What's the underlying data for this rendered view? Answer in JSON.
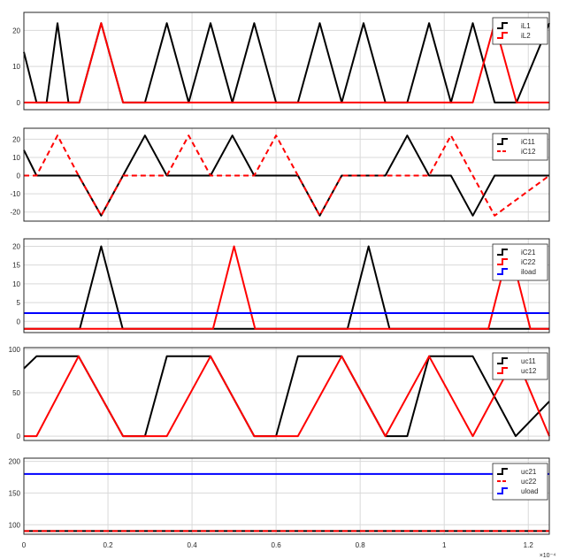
{
  "chart_data": [
    {
      "type": "line",
      "ylim": [
        -2,
        25
      ],
      "yticks": [
        0,
        10,
        20
      ],
      "xlim": [
        0,
        1.25
      ],
      "grid": true,
      "legend_position": "top-right",
      "series": [
        {
          "name": "iL1",
          "color": "#000000",
          "dash": "solid",
          "x": [
            0,
            0.03,
            0.054,
            0.08,
            0.106,
            0.132,
            0.184,
            0.236,
            0.288,
            0.34,
            0.392,
            0.444,
            0.496,
            0.548,
            0.6,
            0.652,
            0.704,
            0.756,
            0.808,
            0.86,
            0.912,
            0.964,
            1.016,
            1.068,
            1.12,
            1.172,
            1.25
          ],
          "y": [
            14,
            0,
            0,
            22,
            0,
            0,
            22,
            0,
            0,
            22,
            0,
            22,
            0,
            22,
            0,
            0,
            22,
            0,
            22,
            0,
            0,
            22,
            0,
            22,
            0,
            0,
            22
          ]
        },
        {
          "name": "iL2",
          "color": "#ff0000",
          "dash": "solid",
          "x": [
            0,
            0.132,
            0.184,
            0.236,
            0.288,
            0.34,
            0.392,
            0.444,
            0.496,
            0.548,
            0.6,
            0.652,
            0.704,
            0.756,
            0.808,
            0.86,
            0.912,
            0.964,
            1.016,
            1.068,
            1.12,
            1.172,
            1.25
          ],
          "y": [
            0,
            0,
            22,
            0,
            0,
            0,
            0,
            0,
            0,
            0,
            0,
            0,
            0,
            0,
            0,
            0,
            0,
            0,
            0,
            0,
            22,
            0,
            0
          ]
        }
      ]
    },
    {
      "type": "line",
      "ylim": [
        -25,
        26
      ],
      "yticks": [
        -20,
        -10,
        0,
        10,
        20
      ],
      "xlim": [
        0,
        1.25
      ],
      "grid": true,
      "legend_position": "top-right",
      "series": [
        {
          "name": "iC11",
          "color": "#000000",
          "dash": "solid",
          "x": [
            0,
            0.03,
            0.13,
            0.184,
            0.236,
            0.288,
            0.34,
            0.392,
            0.444,
            0.496,
            0.548,
            0.6,
            0.652,
            0.704,
            0.756,
            0.808,
            0.86,
            0.912,
            0.964,
            1.016,
            1.068,
            1.12,
            1.172,
            1.25
          ],
          "y": [
            14,
            0,
            0,
            -22,
            0,
            22,
            0,
            0,
            0,
            22,
            0,
            0,
            0,
            -22,
            0,
            0,
            0,
            22,
            0,
            0,
            -22,
            0,
            0,
            0
          ]
        },
        {
          "name": "iC12",
          "color": "#ff0000",
          "dash": "dashed",
          "x": [
            0,
            0.03,
            0.08,
            0.13,
            0.184,
            0.236,
            0.34,
            0.392,
            0.444,
            0.548,
            0.6,
            0.652,
            0.704,
            0.756,
            0.86,
            0.912,
            0.964,
            1.016,
            1.068,
            1.12,
            1.25
          ],
          "y": [
            0,
            0,
            22,
            0,
            -22,
            0,
            0,
            22,
            0,
            0,
            22,
            0,
            -22,
            0,
            0,
            0,
            0,
            22,
            0,
            -22,
            0
          ]
        }
      ]
    },
    {
      "type": "line",
      "ylim": [
        -3,
        22
      ],
      "yticks": [
        0,
        5,
        10,
        15,
        20
      ],
      "xlim": [
        0,
        1.25
      ],
      "grid": true,
      "legend_position": "top-right",
      "series": [
        {
          "name": "iC21",
          "color": "#000000",
          "dash": "solid",
          "x": [
            0,
            0.133,
            0.184,
            0.235,
            0.77,
            0.82,
            0.87,
            1.25
          ],
          "y": [
            -2,
            -2,
            20,
            -2,
            -2,
            20,
            -2,
            -2
          ]
        },
        {
          "name": "iC22",
          "color": "#ff0000",
          "dash": "solid",
          "x": [
            0,
            0.45,
            0.5,
            0.55,
            1.105,
            1.155,
            1.205,
            1.25
          ],
          "y": [
            -2,
            -2,
            20,
            -2,
            -2,
            20,
            -2,
            -2
          ]
        },
        {
          "name": "iload",
          "color": "#0000ff",
          "dash": "solid",
          "x": [
            0,
            1.25
          ],
          "y": [
            2.2,
            2.2
          ]
        }
      ]
    },
    {
      "type": "line",
      "ylim": [
        -5,
        102
      ],
      "yticks": [
        0,
        50,
        100
      ],
      "xlim": [
        0,
        1.25
      ],
      "grid": true,
      "legend_position": "top-right",
      "series": [
        {
          "name": "uc11",
          "color": "#000000",
          "dash": "solid",
          "x": [
            0,
            0.03,
            0.13,
            0.236,
            0.288,
            0.34,
            0.444,
            0.548,
            0.6,
            0.652,
            0.756,
            0.86,
            0.912,
            0.964,
            1.068,
            1.17,
            1.25
          ],
          "y": [
            78,
            92,
            92,
            0,
            0,
            92,
            92,
            0,
            0,
            92,
            92,
            0,
            0,
            92,
            92,
            0,
            40
          ]
        },
        {
          "name": "uc12",
          "color": "#ff0000",
          "dash": "solid",
          "x": [
            0,
            0.03,
            0.13,
            0.236,
            0.34,
            0.444,
            0.548,
            0.652,
            0.756,
            0.86,
            0.964,
            1.068,
            1.17,
            1.25
          ],
          "y": [
            0,
            0,
            92,
            0,
            0,
            92,
            0,
            0,
            92,
            0,
            92,
            0,
            92,
            0
          ]
        }
      ]
    },
    {
      "type": "line",
      "ylim": [
        85,
        205
      ],
      "yticks": [
        100,
        150,
        200
      ],
      "xlim": [
        0,
        1.25
      ],
      "grid": true,
      "legend_position": "top-right",
      "series": [
        {
          "name": "uc21",
          "color": "#000000",
          "dash": "solid",
          "x": [
            0,
            1.25
          ],
          "y": [
            90,
            90
          ]
        },
        {
          "name": "uc22",
          "color": "#ff0000",
          "dash": "dashed",
          "x": [
            0,
            1.25
          ],
          "y": [
            90,
            90
          ]
        },
        {
          "name": "uload",
          "color": "#0000ff",
          "dash": "solid",
          "x": [
            0,
            1.25
          ],
          "y": [
            180,
            180
          ]
        }
      ]
    }
  ],
  "x_axis": {
    "ticks": [
      0,
      0.2,
      0.4,
      0.6,
      0.8,
      1,
      1.2
    ],
    "tick_labels": [
      "0",
      "0.2",
      "0.4",
      "0.6",
      "0.8",
      "1",
      "1.2"
    ],
    "exponent_label": "×10⁻⁴"
  }
}
